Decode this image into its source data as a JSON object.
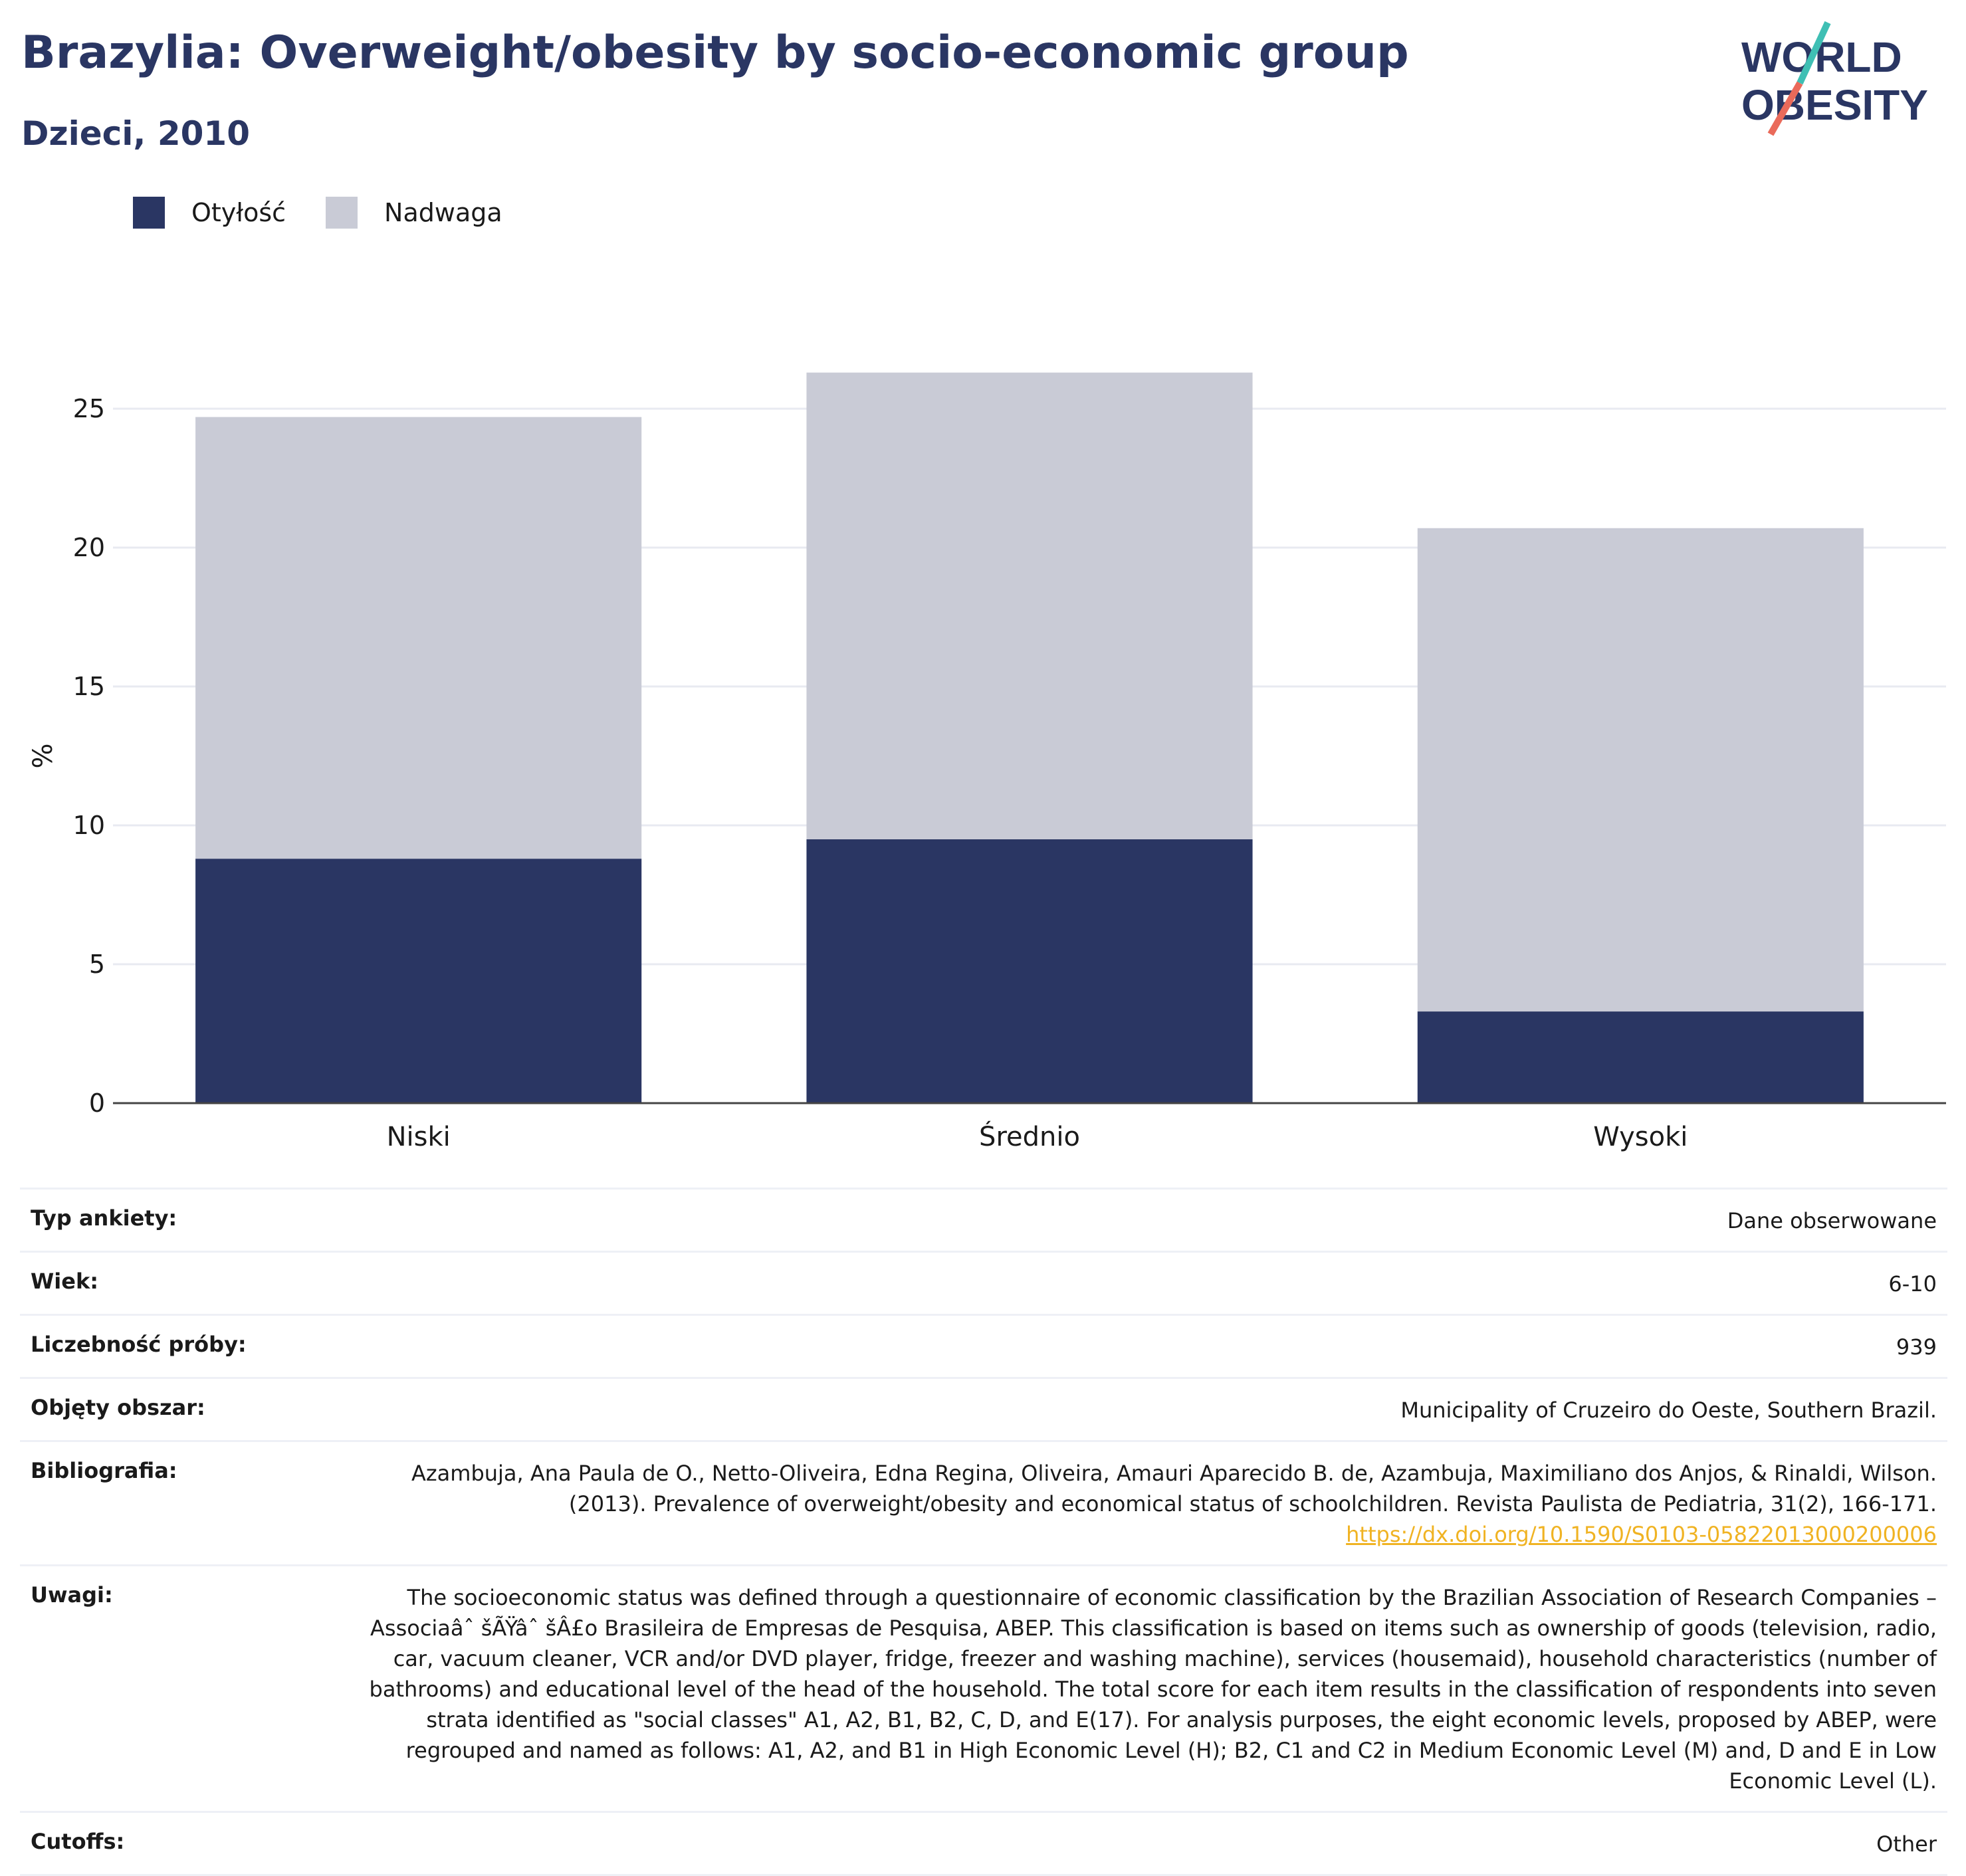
{
  "header": {
    "title": "Brazylia: Overweight/obesity by socio-economic group",
    "subtitle": "Dzieci, 2010"
  },
  "logo": {
    "line1": "WORLD",
    "line2": "OBESITY",
    "brand_color": "#2a3663",
    "slash_colors": [
      "#3fbfb4",
      "#ea6a5a"
    ]
  },
  "colors": {
    "obesity": "#2a3663",
    "overweight": "#c9cbd6",
    "text": "#1a1a1a",
    "link": "#f0b323"
  },
  "legend": [
    {
      "label": "Otyłość",
      "color": "#2a3663"
    },
    {
      "label": "Nadwaga",
      "color": "#c9cbd6"
    }
  ],
  "chart_data": {
    "type": "bar",
    "stacked": true,
    "categories": [
      "Niski",
      "Średnio",
      "Wysoki"
    ],
    "series": [
      {
        "name": "Otyłość",
        "values": [
          8.8,
          9.5,
          3.3
        ],
        "color": "#2a3663"
      },
      {
        "name": "Nadwaga",
        "values": [
          15.9,
          16.8,
          17.4
        ],
        "color": "#c9cbd6"
      }
    ],
    "totals": [
      24.7,
      26.3,
      20.7
    ],
    "ylabel": "%",
    "ylim": [
      0,
      30
    ],
    "yticks": [
      0,
      5,
      10,
      15,
      20,
      25
    ],
    "grid": true,
    "legend_position": "top-left"
  },
  "info": {
    "survey_type": {
      "label": "Typ ankiety:",
      "value": "Dane obserwowane"
    },
    "age": {
      "label": "Wiek:",
      "value": "6-10"
    },
    "sample_size": {
      "label": "Liczebność próby:",
      "value": "939"
    },
    "area": {
      "label": "Objęty obszar:",
      "value": "Municipality of Cruzeiro do Oeste, Southern Brazil."
    },
    "bibliography": {
      "label": "Bibliografia:",
      "text": "Azambuja, Ana Paula de O., Netto-Oliveira, Edna Regina, Oliveira, Amauri Aparecido B. de, Azambuja, Maximiliano dos Anjos, & Rinaldi, Wilson. (2013). Prevalence of overweight/obesity and economical status of schoolchildren. Revista Paulista de Pediatria, 31(2), 166-171. ",
      "link": "https://dx.doi.org/10.1590/S0103-05822013000200006"
    },
    "notes": {
      "label": "Uwagi:",
      "value": "The socioeconomic status was defined through a questionnaire of economic classification by the Brazilian Association of Research Companies – Associaâˆ šÃŸâˆ šÂ£o Brasileira de Empresas de Pesquisa, ABEP. This classification is based on items such as ownership of goods (television, radio, car, vacuum cleaner, VCR and/or DVD player, fridge, freezer and washing machine), services (housemaid), household characteristics (number of bathrooms) and educational level of the head of the household. The total score for each item results in the classification of respondents into seven strata identified as \"social classes\" A1, A2, B1, B2, C, D, and E(17). For analysis purposes, the eight economic levels, proposed by ABEP, were regrouped and named as follows: A1, A2, and B1 in High Economic Level (H); B2, C1 and C2 in Medium Economic Level (M) and, D and E in Low Economic Level (L)."
    },
    "cutoffs": {
      "label": "Cutoffs:",
      "value": "Other"
    }
  }
}
